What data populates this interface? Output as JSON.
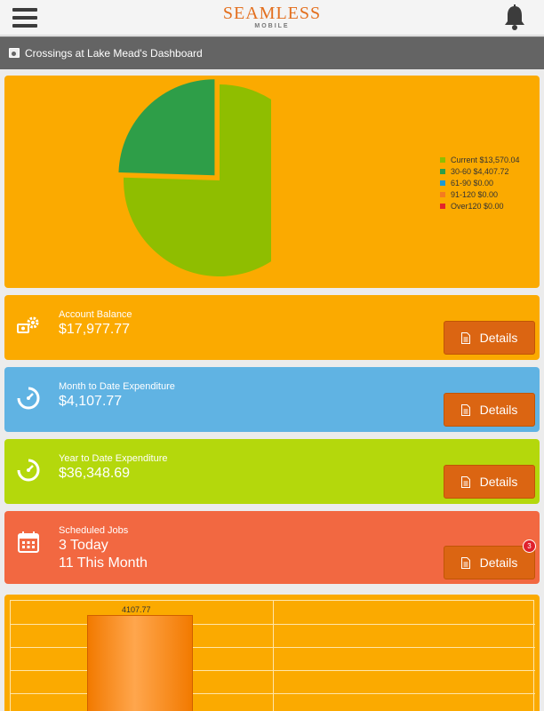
{
  "header": {
    "brand": "SEAMLESS",
    "brand_sub": "MOBILE",
    "menu_icon": "hamburger-menu-icon",
    "bell_icon": "bell-icon"
  },
  "dashboard": {
    "title": "Crossings at Lake Mead's Dashboard"
  },
  "chart_data": {
    "type": "pie",
    "categories": [
      "Current",
      "30-60",
      "61-90",
      "91-120",
      "Over120"
    ],
    "values": [
      13570.04,
      4407.72,
      0.0,
      0.0,
      0.0
    ],
    "labels": [
      "Current $13,570.04",
      "30-60 $4,407.72",
      "61-90 $0.00",
      "91-120 $0.00",
      "Over120 $0.00"
    ],
    "colors": [
      "#8fbe00",
      "#2e9e48",
      "#1c9ad6",
      "#f47b20",
      "#e3242b"
    ],
    "legend": "right",
    "exploded": "30-60"
  },
  "cards": [
    {
      "label": "Account Balance",
      "value": "$17,977.77",
      "icon": "money-gear-icon",
      "button": "Details",
      "color": "#fbaa00"
    },
    {
      "label": "Month to Date Expenditure",
      "value": "$4,107.77",
      "icon": "gauge-icon",
      "button": "Details",
      "color": "#60b3e3"
    },
    {
      "label": "Year to Date Expenditure",
      "value": "$36,348.69",
      "icon": "gauge-icon",
      "button": "Details",
      "color": "#b4d80c"
    },
    {
      "label": "Scheduled Jobs",
      "value": "3 Today",
      "value2": "11 This Month",
      "icon": "calendar-icon",
      "button": "Details",
      "badge": "3",
      "color": "#f26841"
    }
  ],
  "bar_chart": {
    "type": "bar",
    "values": [
      4107.77
    ],
    "value_label": "4107.77"
  }
}
